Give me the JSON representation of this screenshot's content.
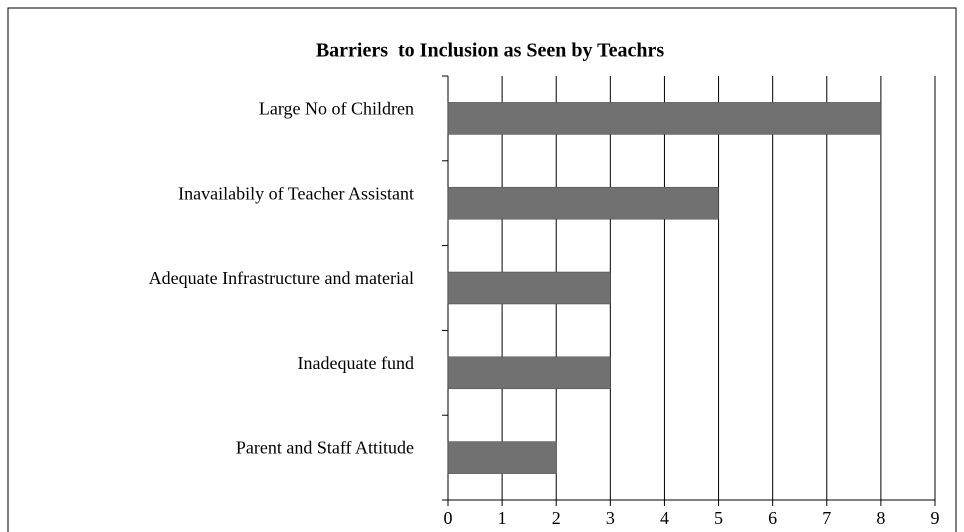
{
  "chart_data": {
    "type": "bar",
    "orientation": "horizontal",
    "title": "Barriers  to Inclusion as Seen by Teachrs",
    "categories": [
      "Large No of Children",
      "Inavailabily of Teacher Assistant",
      "Adequate Infrastructure and material",
      "Inadequate fund",
      "Parent and Staff Attitude"
    ],
    "values": [
      8,
      5,
      3,
      3,
      2
    ],
    "color": "#717171",
    "xlim": [
      0,
      9
    ],
    "xticks": [
      0,
      1,
      2,
      3,
      4,
      5,
      6,
      7,
      8,
      9
    ],
    "grid": true
  }
}
